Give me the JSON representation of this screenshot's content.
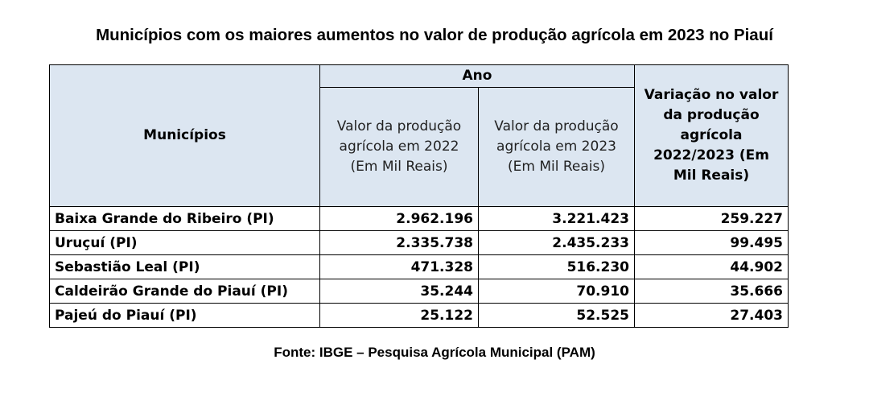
{
  "title": "Municípios com os maiores aumentos no valor de produção agrícola em 2023 no Piauí",
  "table": {
    "header_group": "Ano",
    "col_municipio": "Municípios",
    "col_2022": "Valor da produção agrícola em 2022 (Em Mil Reais)",
    "col_2023": "Valor da produção agrícola em 2023 (Em Mil Reais)",
    "col_variacao": "Variação no valor da produção agrícola 2022/2023 (Em Mil Reais)",
    "rows": [
      {
        "municipio": "Baixa Grande do Ribeiro (PI)",
        "v2022": "2.962.196",
        "v2023": "3.221.423",
        "variacao": "259.227"
      },
      {
        "municipio": "Uruçuí (PI)",
        "v2022": "2.335.738",
        "v2023": "2.435.233",
        "variacao": "99.495"
      },
      {
        "municipio": "Sebastião Leal (PI)",
        "v2022": "471.328",
        "v2023": "516.230",
        "variacao": "44.902"
      },
      {
        "municipio": "Caldeirão Grande do Piauí (PI)",
        "v2022": "35.244",
        "v2023": "70.910",
        "variacao": "35.666"
      },
      {
        "municipio": "Pajeú do Piauí (PI)",
        "v2022": "25.122",
        "v2023": "52.525",
        "variacao": "27.403"
      }
    ]
  },
  "source": "Fonte: IBGE – Pesquisa Agrícola Municipal (PAM)"
}
